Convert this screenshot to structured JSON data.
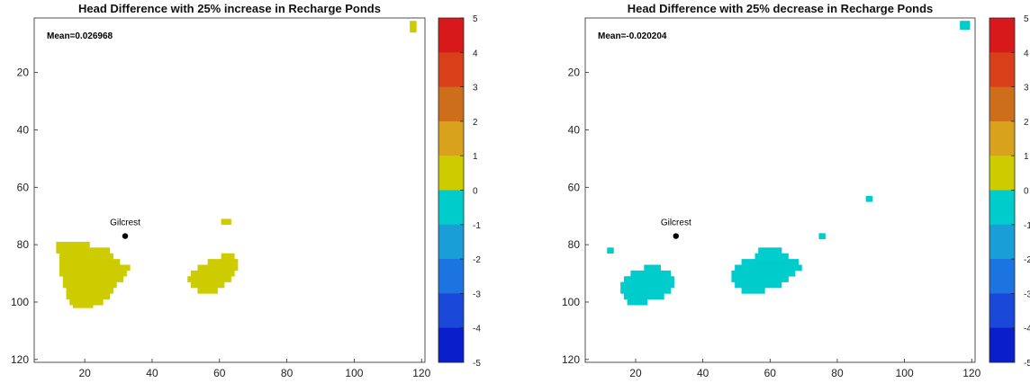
{
  "chart_data": [
    {
      "type": "heatmap",
      "title": "Head Difference with 25% increase in Recharge Ponds",
      "annotation": "Mean=0.026968",
      "marker_label": "Gilcrest",
      "marker": {
        "x": 32,
        "y": 77
      },
      "xlim": [
        5,
        121
      ],
      "ylim": [
        121,
        1
      ],
      "y_reversed": true,
      "x_ticks": [
        "20",
        "40",
        "60",
        "80",
        "100",
        "120"
      ],
      "y_ticks": [
        "20",
        "40",
        "60",
        "80",
        "100",
        "120"
      ],
      "grid": false,
      "colorbar": {
        "range": [
          -5,
          5
        ],
        "ticks": [
          "5",
          "4",
          "3",
          "2",
          "1",
          "0",
          "-1",
          "-2",
          "-3",
          "-4",
          "-5"
        ]
      },
      "bins": [
        {
          "range": [
            4,
            5
          ],
          "color": "#d7191c"
        },
        {
          "range": [
            3,
            4
          ],
          "color": "#d9401a"
        },
        {
          "range": [
            2,
            3
          ],
          "color": "#cc6e1a"
        },
        {
          "range": [
            1,
            2
          ],
          "color": "#d8a21c"
        },
        {
          "range": [
            0,
            1
          ],
          "color": "#cdcc00"
        },
        {
          "range": [
            -1,
            0
          ],
          "color": "#00cccc"
        },
        {
          "range": [
            -2,
            -1
          ],
          "color": "#1a9ed8"
        },
        {
          "range": [
            -3,
            -2
          ],
          "color": "#1c74e0"
        },
        {
          "range": [
            -4,
            -3
          ],
          "color": "#1a48d8"
        },
        {
          "range": [
            -5,
            -4
          ],
          "color": "#0a1ecc"
        }
      ],
      "regions": [
        {
          "value_bin": "0 to 1",
          "bounds": [
            [
              80,
              12,
              21
            ],
            [
              82,
              12,
              27
            ],
            [
              84,
              13,
              28
            ],
            [
              86,
              13,
              30
            ],
            [
              88,
              13,
              33
            ],
            [
              90,
              13,
              32
            ],
            [
              92,
              14,
              31
            ],
            [
              94,
              14,
              29
            ],
            [
              96,
              15,
              28
            ],
            [
              98,
              15,
              27
            ],
            [
              100,
              16,
              25
            ],
            [
              101,
              17,
              22
            ]
          ]
        },
        {
          "value_bin": "0 to 1",
          "bounds": [
            [
              84,
              61,
              64
            ],
            [
              86,
              57,
              65
            ],
            [
              88,
              54,
              65
            ],
            [
              90,
              52,
              64
            ],
            [
              92,
              51,
              63
            ],
            [
              94,
              52,
              61
            ],
            [
              96,
              54,
              59
            ]
          ]
        },
        {
          "value_bin": "0 to 1",
          "bounds": [
            [
              72,
              61,
              63
            ]
          ]
        },
        {
          "value_bin": "0 to 1",
          "bounds": [
            [
              3,
              117,
              118
            ],
            [
              5,
              117,
              118
            ]
          ]
        }
      ]
    },
    {
      "type": "heatmap",
      "title": "Head Difference with 25% decrease in Recharge Ponds",
      "annotation": "Mean=-0.020204",
      "marker_label": "Gilcrest",
      "marker": {
        "x": 32,
        "y": 77
      },
      "xlim": [
        5,
        121
      ],
      "ylim": [
        121,
        1
      ],
      "y_reversed": true,
      "x_ticks": [
        "20",
        "40",
        "60",
        "80",
        "100",
        "120"
      ],
      "y_ticks": [
        "20",
        "40",
        "60",
        "80",
        "100",
        "120"
      ],
      "grid": false,
      "colorbar": {
        "range": [
          -5,
          5
        ],
        "ticks": [
          "5",
          "4",
          "3",
          "2",
          "1",
          "0",
          "-1",
          "-2",
          "-3",
          "-4",
          "-5"
        ]
      },
      "bins": [
        {
          "range": [
            4,
            5
          ],
          "color": "#d7191c"
        },
        {
          "range": [
            3,
            4
          ],
          "color": "#d9401a"
        },
        {
          "range": [
            2,
            3
          ],
          "color": "#cc6e1a"
        },
        {
          "range": [
            1,
            2
          ],
          "color": "#d8a21c"
        },
        {
          "range": [
            0,
            1
          ],
          "color": "#cdcc00"
        },
        {
          "range": [
            -1,
            0
          ],
          "color": "#00cccc"
        },
        {
          "range": [
            -2,
            -1
          ],
          "color": "#1a9ed8"
        },
        {
          "range": [
            -3,
            -2
          ],
          "color": "#1c74e0"
        },
        {
          "range": [
            -4,
            -3
          ],
          "color": "#1a48d8"
        },
        {
          "range": [
            -5,
            -4
          ],
          "color": "#0a1ecc"
        }
      ],
      "regions": [
        {
          "value_bin": "-1 to 0",
          "bounds": [
            [
              88,
              23,
              27
            ],
            [
              90,
              19,
              30
            ],
            [
              92,
              17,
              31
            ],
            [
              94,
              16,
              31
            ],
            [
              96,
              16,
              30
            ],
            [
              98,
              17,
              28
            ],
            [
              100,
              18,
              23
            ]
          ]
        },
        {
          "value_bin": "-1 to 0",
          "bounds": [
            [
              82,
              57,
              63
            ],
            [
              84,
              56,
              65
            ],
            [
              86,
              52,
              68
            ],
            [
              88,
              50,
              69
            ],
            [
              90,
              49,
              67
            ],
            [
              92,
              49,
              65
            ],
            [
              94,
              50,
              63
            ],
            [
              96,
              52,
              58
            ]
          ]
        },
        {
          "value_bin": "-1 to 0",
          "bounds": [
            [
              64,
              89,
              90
            ]
          ]
        },
        {
          "value_bin": "-1 to 0",
          "bounds": [
            [
              77,
              75,
              76
            ]
          ]
        },
        {
          "value_bin": "-1 to 0",
          "bounds": [
            [
              82,
              12,
              13
            ]
          ]
        },
        {
          "value_bin": "-1 to 0",
          "bounds": [
            [
              3,
              117,
              119
            ],
            [
              4,
              117,
              119
            ]
          ]
        }
      ]
    }
  ]
}
